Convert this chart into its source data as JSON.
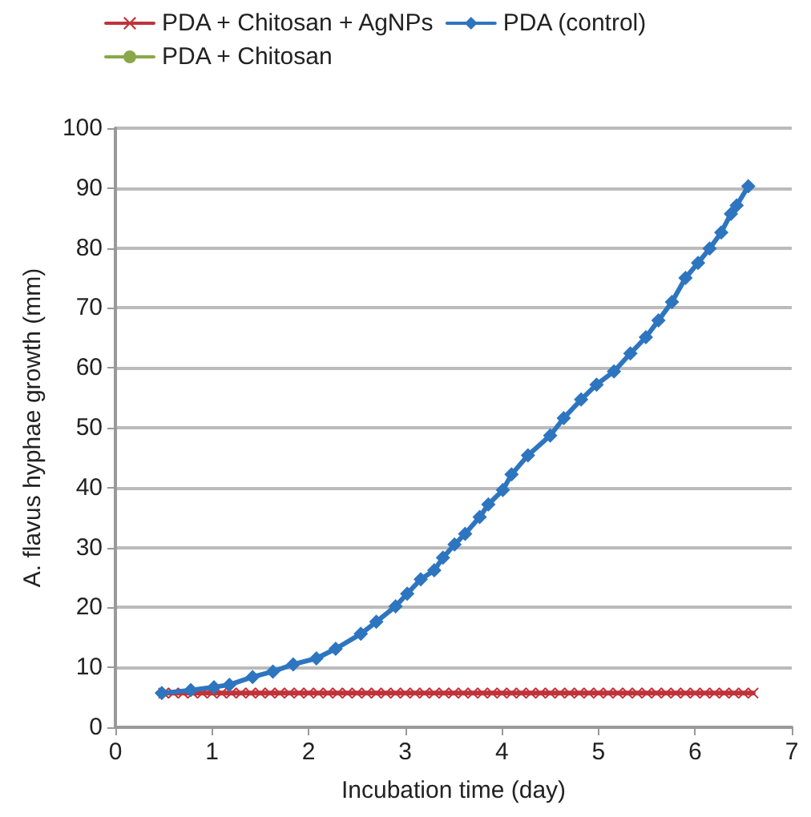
{
  "chart_data": {
    "type": "line",
    "xlabel": "Incubation time (day)",
    "ylabel": "A. flavus hyphae growth (mm)",
    "xlim": [
      0,
      7
    ],
    "xticks": [
      0,
      1,
      2,
      3,
      4,
      5,
      6,
      7
    ],
    "ylim": [
      0,
      100
    ],
    "yticks": [
      0,
      10,
      20,
      30,
      40,
      50,
      60,
      70,
      80,
      90,
      100
    ],
    "grid": "y",
    "legend": "top",
    "line_style": "solid",
    "series": [
      {
        "name": "PDA + Chitosan + AgNPs",
        "color": "#c0333a",
        "marker": "cross",
        "x": [
          0.5,
          0.6,
          0.7,
          0.8,
          0.9,
          1.0,
          1.1,
          1.2,
          1.3,
          1.4,
          1.5,
          1.6,
          1.7,
          1.8,
          1.9,
          2.0,
          2.1,
          2.2,
          2.3,
          2.4,
          2.5,
          2.6,
          2.7,
          2.8,
          2.9,
          3.0,
          3.1,
          3.2,
          3.3,
          3.4,
          3.5,
          3.6,
          3.7,
          3.8,
          3.9,
          4.0,
          4.1,
          4.2,
          4.3,
          4.4,
          4.5,
          4.6,
          4.7,
          4.8,
          4.9,
          5.0,
          5.1,
          5.2,
          5.3,
          5.4,
          5.5,
          5.6,
          5.7,
          5.8,
          5.9,
          6.0,
          6.1,
          6.2,
          6.3,
          6.4,
          6.5,
          6.6
        ],
        "values": [
          5.7,
          5.7,
          5.7,
          5.7,
          5.7,
          5.7,
          5.7,
          5.7,
          5.7,
          5.7,
          5.7,
          5.7,
          5.7,
          5.7,
          5.7,
          5.7,
          5.7,
          5.7,
          5.7,
          5.7,
          5.7,
          5.7,
          5.7,
          5.7,
          5.7,
          5.7,
          5.7,
          5.7,
          5.7,
          5.7,
          5.7,
          5.7,
          5.7,
          5.7,
          5.7,
          5.7,
          5.7,
          5.7,
          5.7,
          5.7,
          5.7,
          5.7,
          5.7,
          5.7,
          5.7,
          5.7,
          5.7,
          5.7,
          5.7,
          5.7,
          5.7,
          5.7,
          5.7,
          5.7,
          5.7,
          5.7,
          5.7,
          5.7,
          5.7,
          5.7,
          5.7,
          5.7
        ]
      },
      {
        "name": "PDA (control)",
        "color": "#2e75c0",
        "marker": "diamond",
        "x": [
          0.48,
          0.78,
          1.02,
          1.18,
          1.42,
          1.63,
          1.84,
          2.08,
          2.28,
          2.54,
          2.7,
          2.9,
          3.02,
          3.16,
          3.3,
          3.39,
          3.51,
          3.62,
          3.77,
          3.86,
          4.01,
          4.1,
          4.27,
          4.5,
          4.64,
          4.82,
          4.98,
          5.16,
          5.33,
          5.49,
          5.62,
          5.76,
          5.9,
          6.03,
          6.15,
          6.27,
          6.37,
          6.43,
          6.55
        ],
        "values": [
          5.7,
          6.2,
          6.7,
          7.1,
          8.4,
          9.3,
          10.5,
          11.5,
          13.1,
          15.6,
          17.6,
          20.2,
          22.3,
          24.7,
          26.2,
          28.3,
          30.5,
          32.3,
          35.1,
          37.2,
          39.6,
          42.2,
          45.4,
          48.7,
          51.6,
          54.7,
          57.2,
          59.4,
          62.4,
          65.1,
          67.9,
          71.0,
          75.0,
          77.5,
          79.9,
          82.6,
          85.7,
          87.1,
          90.3
        ]
      },
      {
        "name": "PDA + Chitosan",
        "color": "#8aa84a",
        "marker": "none"
      }
    ]
  }
}
